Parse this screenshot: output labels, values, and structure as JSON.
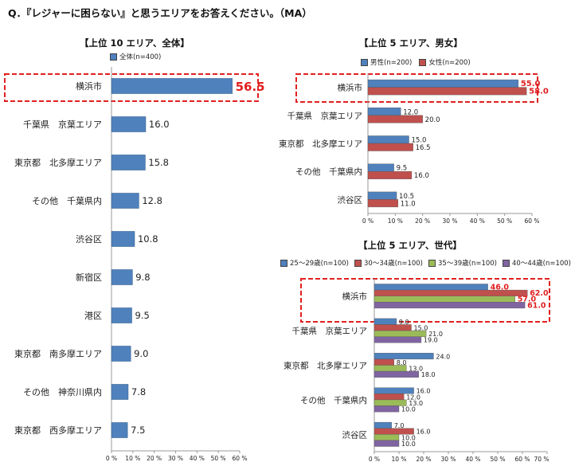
{
  "question": "Q．『レジャーに困らない』と思うエリアをお答えください。（MA）",
  "colors": {
    "total": "#4f81bd",
    "male": "#4f81bd",
    "female": "#c0504d",
    "age1": "#4f81bd",
    "age2": "#c0504d",
    "age3": "#9bbb59",
    "age4": "#8064a2",
    "highlight": "#e02020"
  },
  "chart_data": [
    {
      "type": "bar",
      "orientation": "horizontal",
      "title": "【上位 10 エリア、全体】",
      "categories": [
        "横浜市",
        "千葉県　京葉エリア",
        "東京都　北多摩エリア",
        "その他　千葉県内",
        "渋谷区",
        "新宿区",
        "港区",
        "東京都　南多摩エリア",
        "その他　神奈川県内",
        "東京都　西多摩エリア"
      ],
      "series": [
        {
          "name": "全体(n=400)",
          "values": [
            56.5,
            16.0,
            15.8,
            12.8,
            10.8,
            9.8,
            9.5,
            9.0,
            7.8,
            7.5
          ]
        }
      ],
      "value_labels": [
        "56.5",
        "16.0",
        "15.8",
        "12.8",
        "10.8",
        "9.8",
        "9.5",
        "9.0",
        "7.8",
        "7.5"
      ],
      "xlim": [
        0,
        60
      ],
      "xticks": [
        "0 %",
        "10 %",
        "20 %",
        "30 %",
        "40 %",
        "50 %",
        "60 %"
      ],
      "highlight_category": "横浜市"
    },
    {
      "type": "bar",
      "orientation": "horizontal",
      "title": "【上位 5 エリア、男女】",
      "categories": [
        "横浜市",
        "千葉県　京葉エリア",
        "東京都　北多摩エリア",
        "その他　千葉県内",
        "渋谷区"
      ],
      "series": [
        {
          "name": "男性(n=200)",
          "values": [
            55.0,
            12.0,
            15.0,
            9.5,
            10.5
          ],
          "labels": [
            "55.0",
            "12.0",
            "15.0",
            "9.5",
            "10.5"
          ]
        },
        {
          "name": "女性(n=200)",
          "values": [
            58.0,
            20.0,
            16.5,
            16.0,
            11.0
          ],
          "labels": [
            "58.0",
            "20.0",
            "16.5",
            "16.0",
            "11.0"
          ]
        }
      ],
      "xlim": [
        0,
        60
      ],
      "xticks": [
        "0 %",
        "10 %",
        "20 %",
        "30 %",
        "40 %",
        "50 %",
        "60 %"
      ],
      "highlight_category": "横浜市"
    },
    {
      "type": "bar",
      "orientation": "horizontal",
      "title": "【上位 5 エリア、世代】",
      "categories": [
        "横浜市",
        "千葉県　京葉エリア",
        "東京都　北多摩エリア",
        "その他　千葉県内",
        "渋谷区"
      ],
      "series": [
        {
          "name": "25～29歳(n=100)",
          "values": [
            46.0,
            9.0,
            24.0,
            16.0,
            7.0
          ],
          "labels": [
            "46.0",
            "9.0",
            "24.0",
            "16.0",
            "7.0"
          ]
        },
        {
          "name": "30～34歳(n=100)",
          "values": [
            62.0,
            15.0,
            8.0,
            12.0,
            16.0
          ],
          "labels": [
            "62.0",
            "15.0",
            "8.0",
            "12.0",
            "16.0"
          ]
        },
        {
          "name": "35～39歳(n=100)",
          "values": [
            57.0,
            21.0,
            13.0,
            13.0,
            10.0
          ],
          "labels": [
            "57.0",
            "21.0",
            "13.0",
            "13.0",
            "10.0"
          ]
        },
        {
          "name": "40～44歳(n=100)",
          "values": [
            61.0,
            19.0,
            18.0,
            10.0,
            10.0
          ],
          "labels": [
            "61.0",
            "19.0",
            "18.0",
            "10.0",
            "10.0"
          ]
        }
      ],
      "xlim": [
        0,
        70
      ],
      "xticks": [
        "0 %",
        "10 %",
        "20 %",
        "30 %",
        "40 %",
        "50 %",
        "60 %",
        "70 %"
      ],
      "highlight_category": "横浜市"
    }
  ]
}
